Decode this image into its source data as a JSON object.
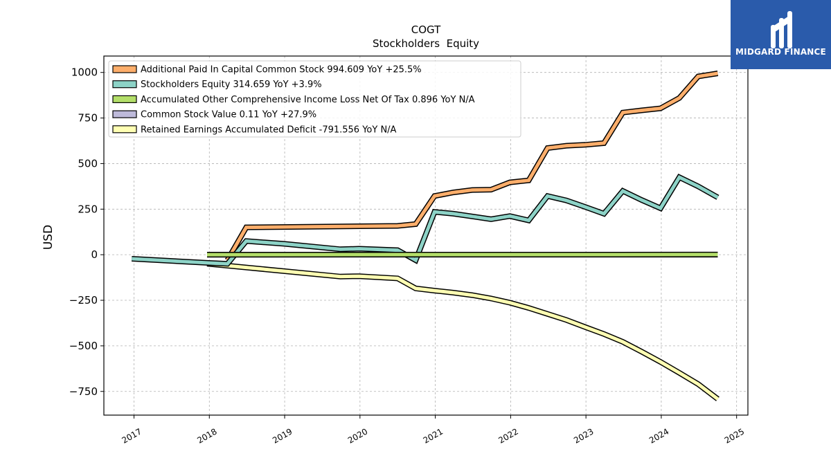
{
  "brand": {
    "name": "MIDGARD FINANCE",
    "color": "#2a5bab"
  },
  "chart_data": {
    "type": "line",
    "title": "COGT",
    "subtitle": "Stockholders  Equity",
    "xlabel": "",
    "ylabel": "USD",
    "xlim": [
      2016.6,
      2025.15
    ],
    "ylim": [
      -880,
      1090
    ],
    "x_ticks": [
      2017,
      2018,
      2019,
      2020,
      2021,
      2022,
      2023,
      2024,
      2025
    ],
    "y_ticks": [
      1000,
      750,
      500,
      250,
      0,
      -250,
      -500,
      -750
    ],
    "y_tick_labels": [
      "1000",
      "750",
      "500",
      "250",
      "0",
      "−250",
      "−500",
      "−750"
    ],
    "grid": true,
    "legend_position": "top-left",
    "series": [
      {
        "name": "Additional Paid In Capital Common Stock  994.609 YoY +25.5%",
        "color": "#fdae6b",
        "x": [
          2018.24,
          2018.49,
          2020.5,
          2020.74,
          2020.99,
          2021.24,
          2021.49,
          2021.74,
          2021.99,
          2022.24,
          2022.49,
          2022.74,
          2022.99,
          2023.24,
          2023.49,
          2023.74,
          2023.99,
          2024.24,
          2024.49,
          2024.75
        ],
        "y": [
          -30,
          150,
          158,
          168,
          322,
          342,
          355,
          357,
          397,
          408,
          585,
          598,
          603,
          612,
          780,
          792,
          803,
          860,
          978,
          995
        ]
      },
      {
        "name": "Stockholders Equity  314.659 YoY +3.9%",
        "color": "#8dd3c7",
        "x": [
          2016.97,
          2017.99,
          2018.24,
          2018.49,
          2018.99,
          2019.74,
          2019.99,
          2020.5,
          2020.74,
          2020.99,
          2021.24,
          2021.49,
          2021.74,
          2021.99,
          2022.24,
          2022.49,
          2022.74,
          2022.99,
          2023.24,
          2023.49,
          2023.74,
          2023.99,
          2024.24,
          2024.49,
          2024.75
        ],
        "y": [
          -22,
          -45,
          -50,
          75,
          60,
          30,
          33,
          25,
          -30,
          235,
          225,
          210,
          195,
          212,
          188,
          322,
          298,
          262,
          225,
          350,
          300,
          255,
          425,
          375,
          314.659
        ]
      },
      {
        "name": "Accumulated Other Comprehensive Income Loss Net Of Tax  0.896 YoY N/A",
        "color": "#b3de69",
        "x": [
          2017.97,
          2024.75
        ],
        "y": [
          0.2,
          0.896
        ]
      },
      {
        "name": "Common Stock Value  0.11 YoY +27.9%",
        "color": "#bebada",
        "x": [
          2017.97,
          2024.75
        ],
        "y": [
          0.09,
          0.11
        ]
      },
      {
        "name": "Retained Earnings Accumulated Deficit  -791.556 YoY N/A",
        "color": "#ffffb3",
        "x": [
          2017.97,
          2018.24,
          2018.49,
          2018.99,
          2019.74,
          2019.99,
          2020.5,
          2020.74,
          2020.99,
          2021.24,
          2021.49,
          2021.74,
          2021.99,
          2022.24,
          2022.49,
          2022.74,
          2022.99,
          2023.24,
          2023.49,
          2023.74,
          2023.99,
          2024.24,
          2024.49,
          2024.75
        ],
        "y": [
          -50,
          -60,
          -70,
          -90,
          -120,
          -118,
          -130,
          -185,
          -197,
          -208,
          -222,
          -240,
          -263,
          -292,
          -325,
          -358,
          -397,
          -435,
          -478,
          -532,
          -588,
          -648,
          -710,
          -791.556
        ]
      }
    ]
  }
}
